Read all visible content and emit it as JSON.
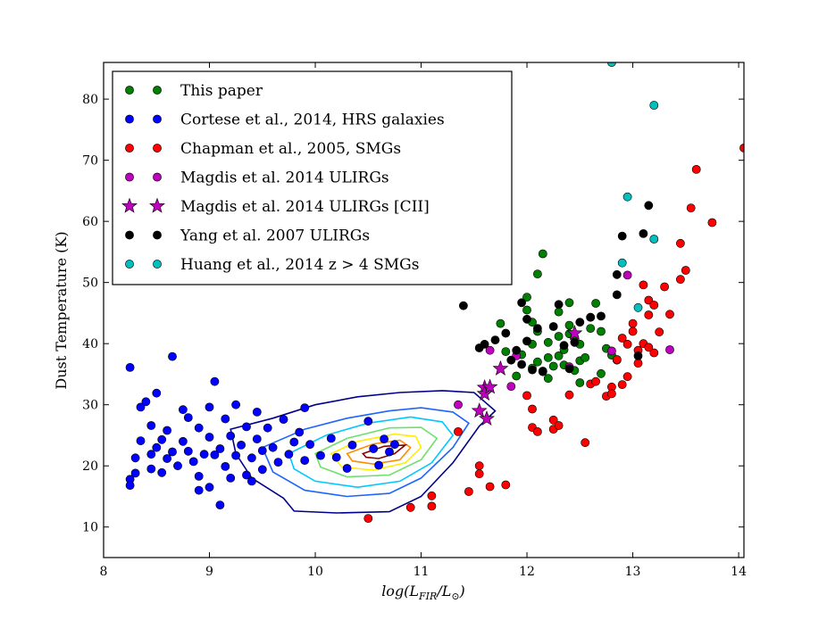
{
  "chart_data": {
    "type": "scatter",
    "title": "",
    "xlabel": "log(L_FIR/L⊙)",
    "ylabel": "Dust Temperature (K)",
    "xlim": [
      8,
      14.05
    ],
    "ylim": [
      5,
      86
    ],
    "xticks": [
      "8",
      "9",
      "10",
      "11",
      "12",
      "13",
      "14"
    ],
    "yticks": [
      "10",
      "20",
      "30",
      "40",
      "50",
      "60",
      "70",
      "80"
    ],
    "legend_position": "upper-left",
    "legend": [
      {
        "label": "This paper",
        "color": "#008000",
        "marker": "circle"
      },
      {
        "label": "Cortese et al., 2014, HRS galaxies",
        "color": "#0000ff",
        "marker": "circle"
      },
      {
        "label": "Chapman et al., 2005, SMGs",
        "color": "#ff0000",
        "marker": "circle"
      },
      {
        "label": "Magdis et al. 2014 ULIRGs",
        "color": "#bf00bf",
        "marker": "circle"
      },
      {
        "label": "Magdis et al. 2014 ULIRGs [CII]",
        "color": "#bf00bf",
        "marker": "star"
      },
      {
        "label": "Yang et al. 2007 ULIRGs",
        "color": "#000000",
        "marker": "circle"
      },
      {
        "label": "Huang et al., 2014 z > 4 SMGs",
        "color": "#00bfbf",
        "marker": "circle"
      }
    ],
    "series": [
      {
        "name": "This paper",
        "color": "#008000",
        "marker": "circle",
        "points": [
          [
            11.75,
            43.3
          ],
          [
            11.8,
            38.7
          ],
          [
            11.9,
            34.7
          ],
          [
            11.95,
            38.2
          ],
          [
            12.0,
            45.5
          ],
          [
            12.0,
            47.6
          ],
          [
            12.05,
            36.0
          ],
          [
            12.05,
            39.9
          ],
          [
            12.1,
            51.4
          ],
          [
            12.1,
            42.0
          ],
          [
            12.1,
            37.0
          ],
          [
            12.15,
            54.7
          ],
          [
            12.15,
            35.4
          ],
          [
            12.2,
            37.7
          ],
          [
            12.2,
            34.3
          ],
          [
            12.25,
            36.3
          ],
          [
            12.3,
            41.2
          ],
          [
            12.3,
            45.2
          ],
          [
            12.3,
            38.0
          ],
          [
            12.35,
            39.0
          ],
          [
            12.35,
            36.5
          ],
          [
            12.4,
            46.7
          ],
          [
            12.4,
            43.0
          ],
          [
            12.4,
            41.6
          ],
          [
            12.45,
            35.6
          ],
          [
            12.45,
            41.0
          ],
          [
            12.5,
            37.2
          ],
          [
            12.5,
            33.6
          ],
          [
            12.5,
            39.9
          ],
          [
            12.55,
            37.7
          ],
          [
            12.6,
            44.3
          ],
          [
            12.65,
            46.6
          ],
          [
            12.7,
            42.0
          ],
          [
            12.7,
            35.1
          ],
          [
            12.75,
            39.2
          ],
          [
            12.8,
            38.1
          ],
          [
            12.85,
            37.3
          ],
          [
            12.6,
            42.5
          ],
          [
            12.2,
            40.2
          ],
          [
            12.05,
            43.5
          ]
        ]
      },
      {
        "name": "Cortese et al., 2014, HRS galaxies",
        "color": "#0000ff",
        "marker": "circle",
        "points": [
          [
            8.25,
            36.1
          ],
          [
            8.25,
            17.8
          ],
          [
            8.25,
            16.8
          ],
          [
            8.3,
            21.3
          ],
          [
            8.3,
            18.8
          ],
          [
            8.35,
            29.6
          ],
          [
            8.35,
            24.1
          ],
          [
            8.4,
            30.5
          ],
          [
            8.45,
            26.6
          ],
          [
            8.45,
            21.9
          ],
          [
            8.45,
            19.5
          ],
          [
            8.5,
            31.9
          ],
          [
            8.5,
            23.0
          ],
          [
            8.55,
            24.3
          ],
          [
            8.55,
            18.9
          ],
          [
            8.6,
            25.8
          ],
          [
            8.6,
            21.2
          ],
          [
            8.65,
            37.9
          ],
          [
            8.65,
            22.3
          ],
          [
            8.7,
            20.0
          ],
          [
            8.75,
            29.2
          ],
          [
            8.75,
            24.0
          ],
          [
            8.8,
            27.9
          ],
          [
            8.8,
            22.4
          ],
          [
            8.85,
            20.7
          ],
          [
            8.9,
            26.2
          ],
          [
            8.9,
            18.3
          ],
          [
            8.95,
            21.9
          ],
          [
            9.0,
            29.6
          ],
          [
            9.0,
            24.7
          ],
          [
            9.05,
            33.8
          ],
          [
            9.05,
            21.8
          ],
          [
            9.1,
            22.8
          ],
          [
            9.1,
            13.6
          ],
          [
            9.15,
            27.7
          ],
          [
            9.15,
            19.9
          ],
          [
            9.2,
            24.9
          ],
          [
            9.25,
            21.7
          ],
          [
            9.25,
            30.0
          ],
          [
            9.3,
            23.4
          ],
          [
            9.35,
            26.4
          ],
          [
            9.35,
            18.5
          ],
          [
            9.4,
            21.3
          ],
          [
            9.45,
            28.8
          ],
          [
            9.45,
            24.4
          ],
          [
            9.5,
            22.5
          ],
          [
            9.5,
            19.4
          ],
          [
            9.55,
            26.2
          ],
          [
            9.6,
            23.0
          ],
          [
            9.65,
            20.6
          ],
          [
            9.7,
            27.6
          ],
          [
            9.75,
            21.9
          ],
          [
            9.8,
            23.9
          ],
          [
            9.85,
            25.5
          ],
          [
            9.9,
            29.5
          ],
          [
            9.9,
            20.9
          ],
          [
            9.95,
            23.5
          ],
          [
            10.05,
            21.7
          ],
          [
            10.15,
            24.5
          ],
          [
            10.2,
            21.4
          ],
          [
            10.3,
            19.6
          ],
          [
            10.35,
            23.4
          ],
          [
            10.5,
            27.3
          ],
          [
            10.55,
            22.8
          ],
          [
            10.6,
            20.1
          ],
          [
            10.65,
            24.4
          ],
          [
            10.7,
            22.3
          ],
          [
            10.75,
            23.5
          ],
          [
            9.0,
            16.5
          ],
          [
            8.9,
            16.0
          ],
          [
            9.2,
            18.0
          ],
          [
            9.4,
            17.5
          ]
        ]
      },
      {
        "name": "Chapman et al., 2005, SMGs",
        "color": "#ff0000",
        "marker": "circle",
        "points": [
          [
            10.5,
            11.4
          ],
          [
            10.9,
            13.2
          ],
          [
            11.1,
            13.4
          ],
          [
            11.1,
            15.1
          ],
          [
            11.35,
            25.6
          ],
          [
            11.45,
            15.8
          ],
          [
            11.55,
            20.0
          ],
          [
            11.55,
            18.7
          ],
          [
            11.65,
            16.6
          ],
          [
            11.8,
            16.9
          ],
          [
            12.0,
            31.5
          ],
          [
            12.05,
            29.3
          ],
          [
            12.05,
            26.3
          ],
          [
            12.1,
            25.6
          ],
          [
            12.25,
            26.0
          ],
          [
            12.25,
            27.5
          ],
          [
            12.3,
            26.6
          ],
          [
            12.4,
            31.6
          ],
          [
            12.55,
            23.8
          ],
          [
            12.6,
            33.4
          ],
          [
            12.65,
            33.8
          ],
          [
            12.75,
            31.4
          ],
          [
            12.8,
            32.9
          ],
          [
            12.8,
            31.8
          ],
          [
            12.85,
            37.4
          ],
          [
            12.9,
            33.3
          ],
          [
            12.95,
            34.6
          ],
          [
            12.95,
            39.9
          ],
          [
            13.0,
            43.3
          ],
          [
            13.0,
            42.0
          ],
          [
            13.05,
            36.8
          ],
          [
            13.05,
            38.9
          ],
          [
            13.1,
            40.0
          ],
          [
            13.1,
            49.6
          ],
          [
            13.15,
            47.1
          ],
          [
            13.15,
            44.7
          ],
          [
            13.2,
            38.5
          ],
          [
            13.2,
            46.3
          ],
          [
            13.25,
            41.9
          ],
          [
            13.3,
            49.3
          ],
          [
            13.35,
            44.8
          ],
          [
            13.45,
            50.5
          ],
          [
            13.45,
            56.4
          ],
          [
            13.5,
            52.0
          ],
          [
            13.55,
            62.2
          ],
          [
            13.6,
            68.5
          ],
          [
            13.75,
            59.8
          ],
          [
            14.05,
            72.0
          ],
          [
            12.9,
            40.9
          ],
          [
            13.15,
            39.4
          ]
        ]
      },
      {
        "name": "Magdis et al. 2014 ULIRGs",
        "color": "#bf00bf",
        "marker": "circle",
        "points": [
          [
            11.35,
            30.0
          ],
          [
            11.65,
            38.9
          ],
          [
            11.85,
            33.0
          ],
          [
            11.9,
            38.0
          ],
          [
            12.4,
            36.2
          ],
          [
            12.8,
            38.8
          ],
          [
            12.95,
            51.2
          ],
          [
            13.35,
            39.0
          ]
        ]
      },
      {
        "name": "Magdis et al. 2014 ULIRGs [CII]",
        "color": "#bf00bf",
        "marker": "star",
        "points": [
          [
            11.55,
            29.0
          ],
          [
            11.6,
            32.8
          ],
          [
            11.6,
            31.8
          ],
          [
            11.65,
            32.9
          ],
          [
            11.62,
            27.7
          ],
          [
            11.75,
            35.9
          ],
          [
            12.45,
            41.7
          ]
        ]
      },
      {
        "name": "Yang et al. 2007 ULIRGs",
        "color": "#000000",
        "marker": "circle",
        "points": [
          [
            11.4,
            46.2
          ],
          [
            11.55,
            39.3
          ],
          [
            11.6,
            39.9
          ],
          [
            11.7,
            40.6
          ],
          [
            11.8,
            41.7
          ],
          [
            11.85,
            37.3
          ],
          [
            11.9,
            38.9
          ],
          [
            11.95,
            36.6
          ],
          [
            12.0,
            44.0
          ],
          [
            12.05,
            35.7
          ],
          [
            12.1,
            42.5
          ],
          [
            12.15,
            35.5
          ],
          [
            12.25,
            42.8
          ],
          [
            12.3,
            46.4
          ],
          [
            12.35,
            39.7
          ],
          [
            12.4,
            35.9
          ],
          [
            12.45,
            40.2
          ],
          [
            12.5,
            43.5
          ],
          [
            12.6,
            44.3
          ],
          [
            12.7,
            44.5
          ],
          [
            12.85,
            48.0
          ],
          [
            12.9,
            57.6
          ],
          [
            13.05,
            38.0
          ],
          [
            13.1,
            58.0
          ],
          [
            13.15,
            62.6
          ],
          [
            12.85,
            51.3
          ],
          [
            12.0,
            40.4
          ],
          [
            11.95,
            46.7
          ]
        ]
      },
      {
        "name": "Huang et al., 2014 z > 4 SMGs",
        "color": "#00bfbf",
        "marker": "circle",
        "points": [
          [
            12.8,
            86.0
          ],
          [
            12.9,
            53.2
          ],
          [
            12.95,
            64.0
          ],
          [
            13.05,
            45.9
          ],
          [
            13.2,
            79.0
          ],
          [
            13.2,
            57.1
          ]
        ]
      }
    ],
    "contours": [
      {
        "color": "#00008b",
        "points": [
          [
            9.2,
            26.0
          ],
          [
            9.6,
            27.8
          ],
          [
            10.0,
            30.0
          ],
          [
            10.4,
            31.3
          ],
          [
            10.8,
            32.0
          ],
          [
            11.2,
            32.3
          ],
          [
            11.5,
            32.0
          ],
          [
            11.7,
            29.0
          ],
          [
            11.55,
            26.5
          ],
          [
            11.3,
            20.5
          ],
          [
            11.0,
            15.0
          ],
          [
            10.7,
            12.5
          ],
          [
            10.2,
            12.3
          ],
          [
            9.8,
            12.6
          ],
          [
            9.7,
            14.7
          ],
          [
            9.4,
            18.0
          ],
          [
            9.25,
            22.0
          ]
        ]
      },
      {
        "color": "#1e64ff",
        "points": [
          [
            9.5,
            23.0
          ],
          [
            9.9,
            26.0
          ],
          [
            10.3,
            27.8
          ],
          [
            10.7,
            29.0
          ],
          [
            11.0,
            29.5
          ],
          [
            11.3,
            28.8
          ],
          [
            11.45,
            27.0
          ],
          [
            11.3,
            23.0
          ],
          [
            11.0,
            18.0
          ],
          [
            10.7,
            15.5
          ],
          [
            10.3,
            15.0
          ],
          [
            9.9,
            16.0
          ],
          [
            9.6,
            19.0
          ]
        ]
      },
      {
        "color": "#00c8ff",
        "points": [
          [
            9.75,
            22.0
          ],
          [
            10.1,
            25.0
          ],
          [
            10.5,
            27.0
          ],
          [
            10.9,
            28.0
          ],
          [
            11.2,
            27.2
          ],
          [
            11.3,
            25.0
          ],
          [
            11.1,
            20.5
          ],
          [
            10.8,
            17.5
          ],
          [
            10.4,
            16.5
          ],
          [
            10.0,
            17.5
          ],
          [
            9.8,
            19.5
          ]
        ]
      },
      {
        "color": "#6ee06e",
        "points": [
          [
            10.0,
            22.0
          ],
          [
            10.3,
            24.5
          ],
          [
            10.7,
            26.2
          ],
          [
            11.0,
            26.3
          ],
          [
            11.15,
            24.5
          ],
          [
            11.0,
            21.0
          ],
          [
            10.7,
            18.5
          ],
          [
            10.3,
            18.2
          ],
          [
            10.05,
            19.8
          ]
        ]
      },
      {
        "color": "#ffee00",
        "points": [
          [
            10.15,
            22.0
          ],
          [
            10.4,
            24.0
          ],
          [
            10.75,
            25.2
          ],
          [
            10.95,
            24.8
          ],
          [
            11.0,
            23.0
          ],
          [
            10.85,
            20.5
          ],
          [
            10.55,
            19.3
          ],
          [
            10.25,
            19.8
          ]
        ]
      },
      {
        "color": "#ff8c00",
        "points": [
          [
            10.3,
            22.0
          ],
          [
            10.55,
            23.6
          ],
          [
            10.8,
            24.2
          ],
          [
            10.9,
            23.0
          ],
          [
            10.8,
            21.0
          ],
          [
            10.55,
            20.3
          ],
          [
            10.35,
            20.8
          ]
        ]
      },
      {
        "color": "#8b0000",
        "points": [
          [
            10.45,
            22.0
          ],
          [
            10.65,
            23.2
          ],
          [
            10.85,
            23.4
          ],
          [
            10.75,
            22.0
          ],
          [
            10.6,
            21.2
          ],
          [
            10.48,
            21.4
          ]
        ]
      }
    ]
  }
}
